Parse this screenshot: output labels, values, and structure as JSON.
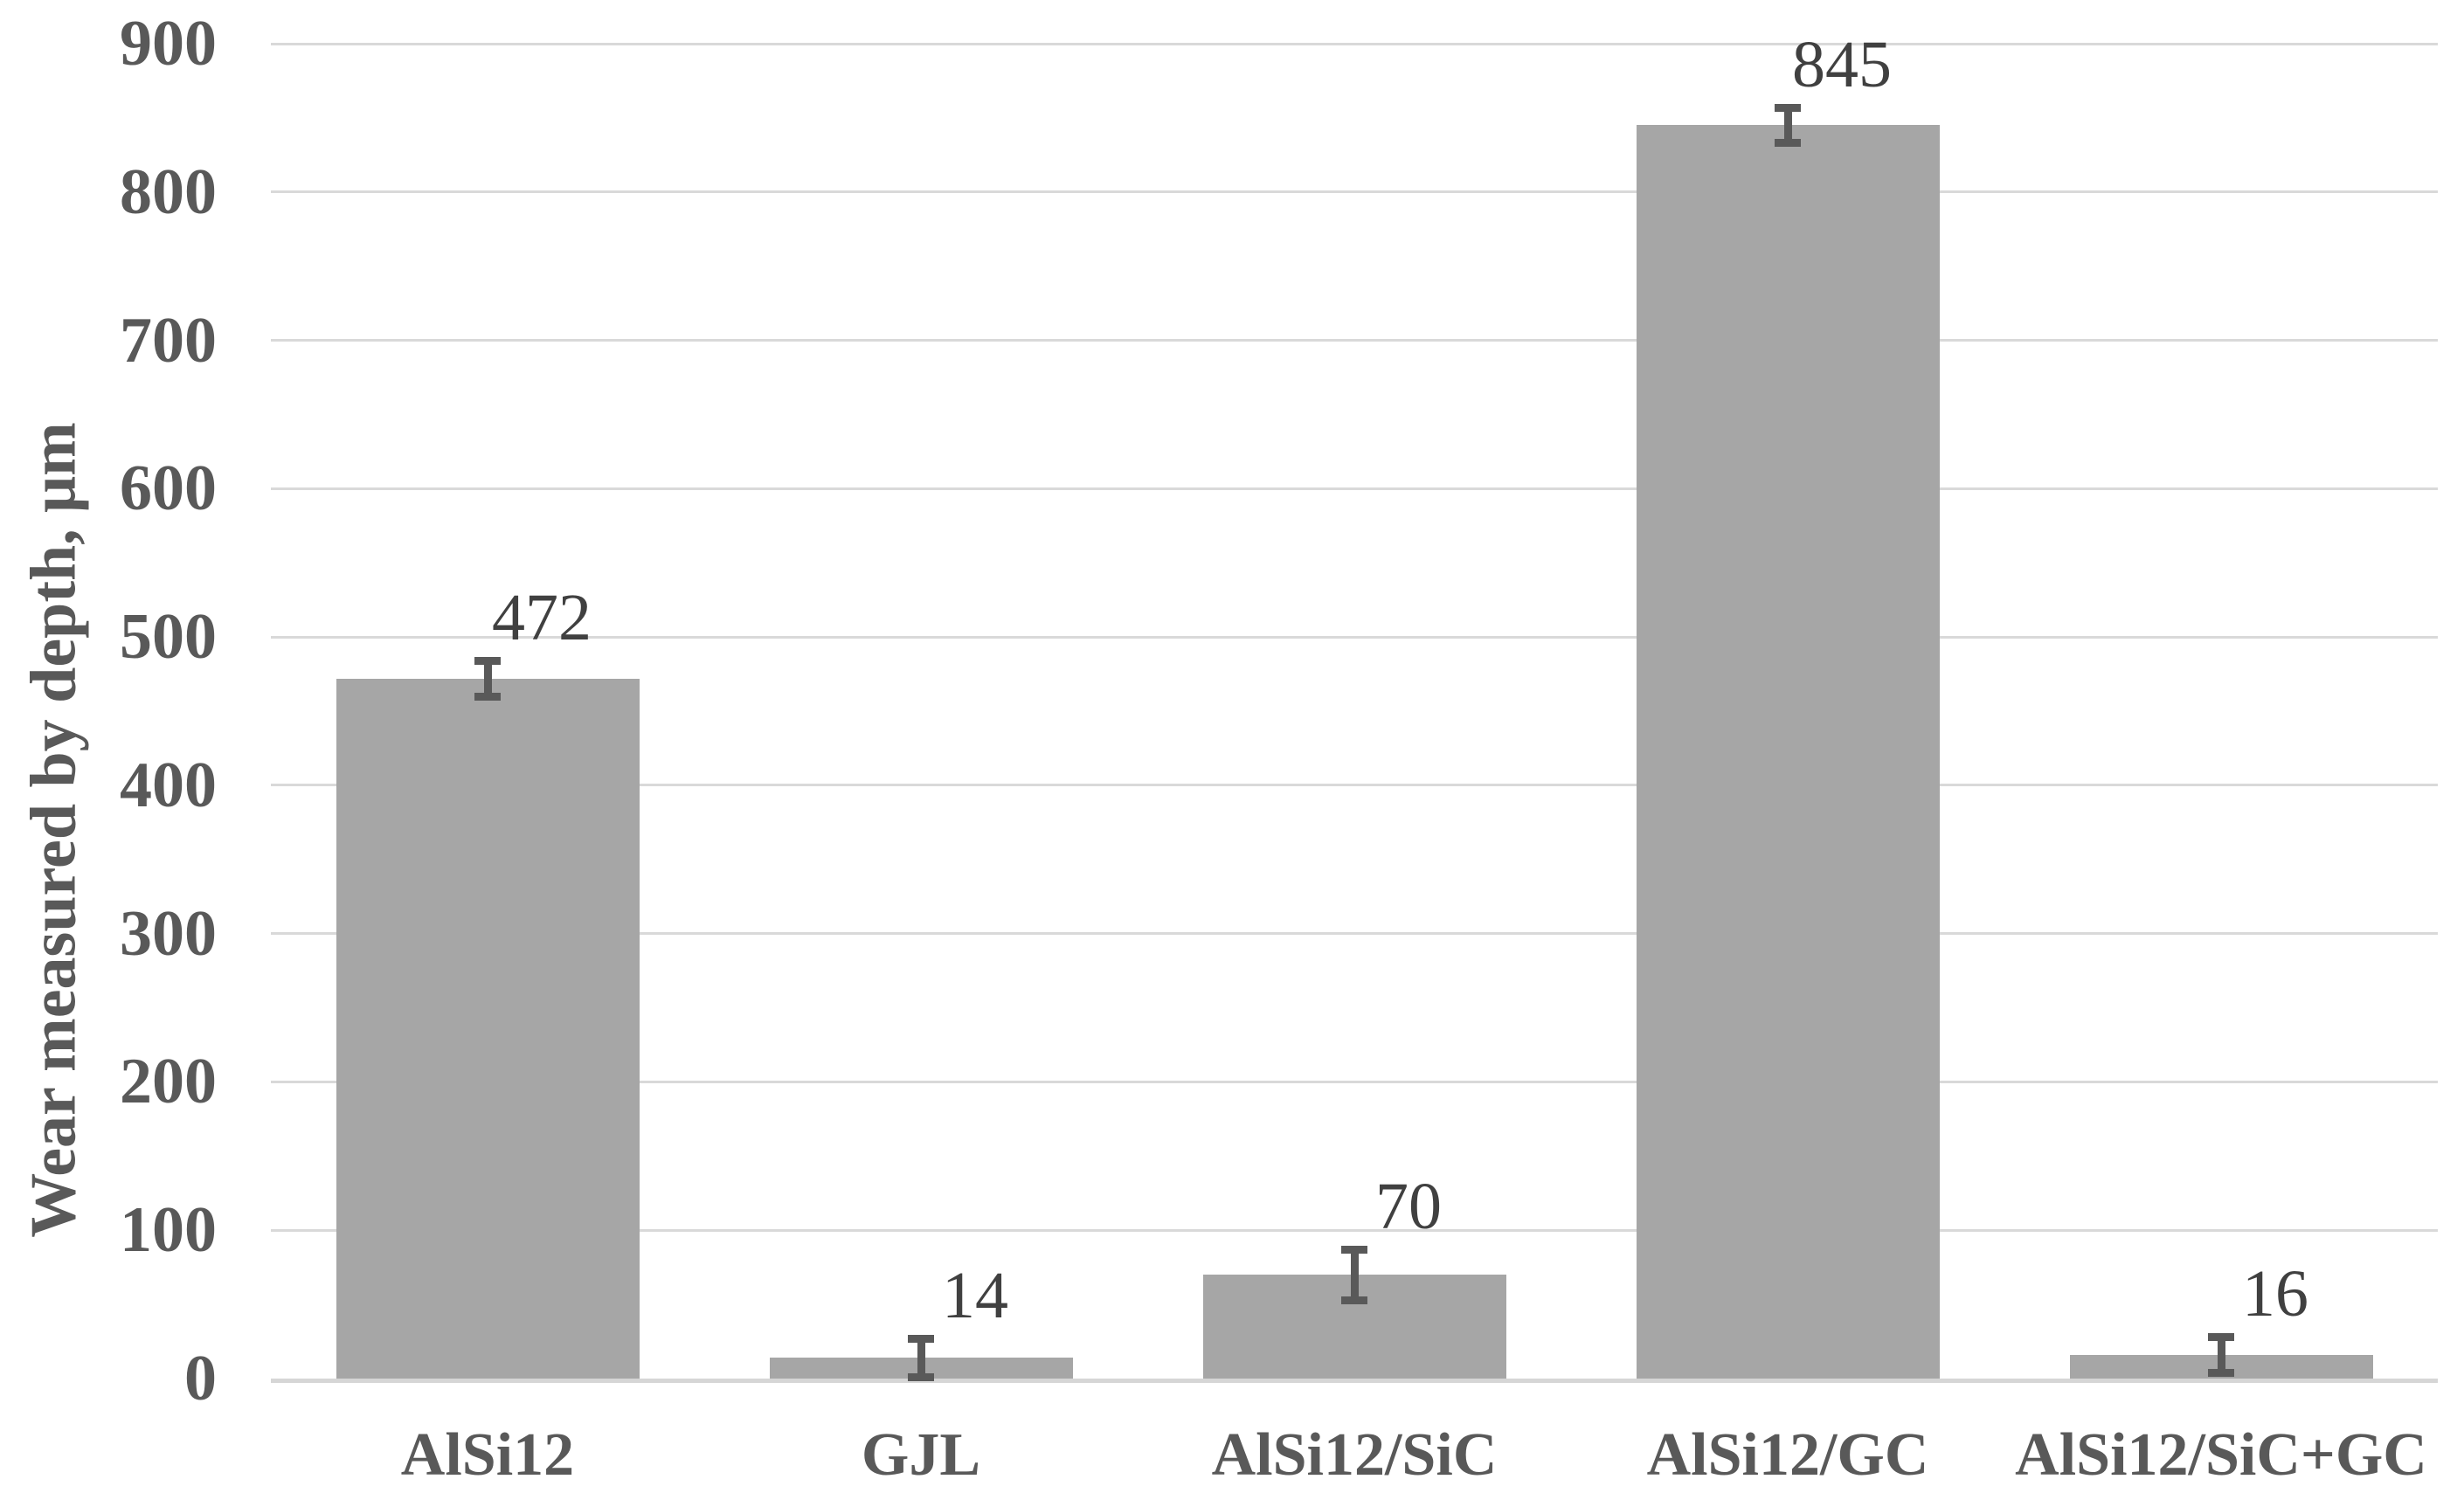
{
  "figure": {
    "background": "#ffffff"
  },
  "chart_data": {
    "type": "bar",
    "title": "",
    "xlabel": "",
    "ylabel": "Wear measured by depth, μm",
    "categories": [
      "AlSi12",
      "GJL",
      "AlSi12/SiC",
      "AlSi12/GC",
      "AlSi12/SiC+GC"
    ],
    "values": [
      472,
      14,
      70,
      845,
      16
    ],
    "data_labels": [
      "472",
      "14",
      "70",
      "845",
      "16"
    ],
    "error_bars": [
      12,
      13,
      17,
      12,
      12
    ],
    "ylim": [
      0,
      900
    ],
    "ytick_step": 100,
    "ytick_labels": [
      "0",
      "100",
      "200",
      "300",
      "400",
      "500",
      "600",
      "700",
      "800",
      "900"
    ],
    "grid": true,
    "legend_position": "none",
    "colors": {
      "bar_fill": "#a6a6a6",
      "error_bar": "#595959",
      "gridline": "#d9d9d9",
      "axis_line": "#d6d6d6",
      "tick_label": "#595959",
      "category_label": "#595959",
      "data_label": "#404040",
      "axis_title": "#595959"
    }
  }
}
